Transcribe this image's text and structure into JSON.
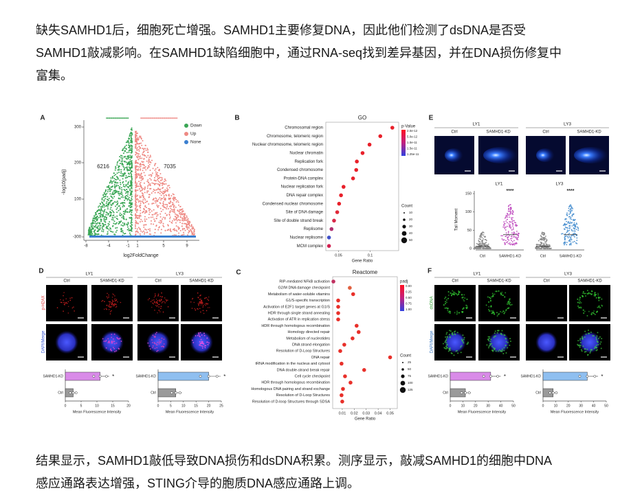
{
  "paragraphs": [
    [
      "缺失SAMHD1后，细胞死亡增强。SAMHD1主要修复DNA，因此他们检测了dsDNA是否受",
      "SAMHD1敲减影响。在SAMHD1缺陷细胞中，通过RNA-seq找到差异基因，并在DNA损伤修复中",
      "富集。"
    ],
    [
      "结果显示，SAMHD1敲低导致DNA损伤和dsDNA积累。测序显示，敲减SAMHD1的细胞中DNA",
      "感应通路表达增强，STING介导的胞质DNA感应通路上调。"
    ]
  ],
  "figure": {
    "A": {
      "label": "A",
      "legend": [
        {
          "name": "Down",
          "color": "#3aa655"
        },
        {
          "name": "Up",
          "color": "#ee8a84"
        },
        {
          "name": "None",
          "color": "#3b7fd0"
        }
      ],
      "down_count": 6216,
      "up_count": 7035,
      "ylabel": "-log10(padj)",
      "xlabel": "log2FoldChange",
      "yticks": [
        300,
        200,
        100,
        -300
      ],
      "xticks": [
        -8,
        -4,
        -1,
        1,
        5,
        9
      ]
    },
    "B": {
      "label": "B",
      "title": "GO",
      "xlabel": "Gene Ratio",
      "xlim": [
        0.03,
        0.145
      ],
      "xticks": [
        0.05,
        0.1
      ],
      "terms": [
        {
          "name": "Chromosomal region",
          "ratio": 0.135,
          "color": "#e8202a"
        },
        {
          "name": "Chromosome, telomeric region",
          "ratio": 0.116,
          "color": "#e8202a"
        },
        {
          "name": "Nuclear chromosome, telomeric region",
          "ratio": 0.099,
          "color": "#e8202a"
        },
        {
          "name": "Nuclear chromatin",
          "ratio": 0.088,
          "color": "#e8202a"
        },
        {
          "name": "Replication fork",
          "ratio": 0.079,
          "color": "#e8202a"
        },
        {
          "name": "Condensed chromosome",
          "ratio": 0.078,
          "color": "#e8202a"
        },
        {
          "name": "Protein-DNA complex",
          "ratio": 0.073,
          "color": "#e8202a"
        },
        {
          "name": "Nuclear replication fork",
          "ratio": 0.058,
          "color": "#e8202a"
        },
        {
          "name": "DNA repair complex",
          "ratio": 0.054,
          "color": "#e8202a"
        },
        {
          "name": "Condensed nuclear chromosome",
          "ratio": 0.051,
          "color": "#e8202a"
        },
        {
          "name": "Site of DNA damage",
          "ratio": 0.048,
          "color": "#e02838"
        },
        {
          "name": "Site of double strand break",
          "ratio": 0.043,
          "color": "#d82848"
        },
        {
          "name": "Replisome",
          "ratio": 0.039,
          "color": "#b03070"
        },
        {
          "name": "Nuclear replisome",
          "ratio": 0.035,
          "color": "#4050c8"
        },
        {
          "name": "MCM complex",
          "ratio": 0.035,
          "color": "#d02050"
        }
      ],
      "color_legend": {
        "title": "p-Value",
        "ticks": [
          "2.0e-12",
          "5.0e-12",
          "1.0e-11",
          "1.5e-11",
          "1.25e-11"
        ]
      },
      "size_legend": {
        "title": "Count",
        "ticks": [
          10,
          20,
          30,
          40,
          50
        ]
      }
    },
    "C": {
      "label": "C",
      "title": "Reactome",
      "xlabel": "Gene Ratio",
      "xlim": [
        0.002,
        0.056
      ],
      "xticks": [
        0.01,
        0.02,
        0.03,
        0.04,
        0.05
      ],
      "terms": [
        {
          "name": "RIP-mediated NFkB activation",
          "ratio": 0.0026,
          "color": "#c03060"
        },
        {
          "name": "G2/M DNA damage checkpoint",
          "ratio": 0.0163,
          "color": "#e06040"
        },
        {
          "name": "Metabolism of water-soluble vitamins",
          "ratio": 0.0191,
          "color": "#e8302a"
        },
        {
          "name": "G1/S-specific transcription",
          "ratio": 0.0066,
          "color": "#e8302a"
        },
        {
          "name": "Activation of E2F1 target genes at G1/S",
          "ratio": 0.0066,
          "color": "#e8302a"
        },
        {
          "name": "HDR through single strand annealing",
          "ratio": 0.0066,
          "color": "#e8302a"
        },
        {
          "name": "Activation of ATR in replication stress",
          "ratio": 0.0066,
          "color": "#e8302a"
        },
        {
          "name": "HDR through homologous recombination",
          "ratio": 0.022,
          "color": "#e8302a"
        },
        {
          "name": "Homology directed repair",
          "ratio": 0.0237,
          "color": "#e8302a"
        },
        {
          "name": "Metabolism of nucleotides",
          "ratio": 0.0186,
          "color": "#e8302a"
        },
        {
          "name": "DNA strand elongation",
          "ratio": 0.0117,
          "color": "#e8302a"
        },
        {
          "name": "Resolution of D-Loop Structures",
          "ratio": 0.0083,
          "color": "#e8302a"
        },
        {
          "name": "DNA repair",
          "ratio": 0.05,
          "color": "#e8302a"
        },
        {
          "name": "tRNA modification in the nucleus and cytosol",
          "ratio": 0.0094,
          "color": "#e8302a"
        },
        {
          "name": "DNA double-strand break repair",
          "ratio": 0.0283,
          "color": "#e8302a"
        },
        {
          "name": "Cell cycle checkpoint",
          "ratio": 0.0123,
          "color": "#e8302a"
        },
        {
          "name": "HDR through homologous recombination",
          "ratio": 0.0169,
          "color": "#e8302a"
        },
        {
          "name": "Homologous DNA pairing and strand exchange",
          "ratio": 0.0106,
          "color": "#e8302a"
        },
        {
          "name": "Resolution of D-Loop Structures",
          "ratio": 0.0094,
          "color": "#e8302a"
        },
        {
          "name": "Resolution of D-loop Structures through SDSA",
          "ratio": 0.01,
          "color": "#e8302a"
        }
      ],
      "color_legend": {
        "title": "padj",
        "ticks": [
          "0.00",
          "0.25",
          "0.50",
          "0.75",
          "1.00"
        ]
      },
      "size_legend": {
        "title": "Count",
        "ticks": [
          25,
          50,
          75,
          100,
          125
        ]
      }
    },
    "D": {
      "label": "D",
      "rows": [
        {
          "name": "p-H2AX",
          "color": "#e03030"
        },
        {
          "name": "DAPI/Merge",
          "color": "#3050d0"
        }
      ],
      "groups": [
        {
          "name": "LY1",
          "conditions": [
            "Ctrl",
            "SAMHD1-KD"
          ],
          "bars": {
            "categories": [
              "SAMHD1-KD",
              "Ctrl"
            ],
            "values": [
              11,
              2.5
            ],
            "colors": [
              "#d98be8",
              "#9a9a9a"
            ],
            "signif": "*",
            "xlim": [
              0,
              20
            ],
            "xticks": [
              0,
              5,
              10,
              15,
              20
            ],
            "xlabel": "Mean Fluorescence Intensity"
          }
        },
        {
          "name": "LY3",
          "conditions": [
            "Ctrl",
            "SAMHD1-KD"
          ],
          "bars": {
            "categories": [
              "SAMHD1-KD",
              "Ctrl"
            ],
            "values": [
              20,
              7
            ],
            "colors": [
              "#8fbff0",
              "#9a9a9a"
            ],
            "signif": "*",
            "xlim": [
              0,
              25
            ],
            "xticks": [
              0,
              5,
              10,
              15,
              20,
              25
            ],
            "xlabel": "Mean Fluorescence Intensity"
          }
        }
      ]
    },
    "E": {
      "label": "E",
      "groups": [
        {
          "name": "LY1",
          "conditions": [
            "Ctrl",
            "SAMHD1-KD"
          ]
        },
        {
          "name": "LY3",
          "conditions": [
            "Ctrl",
            "SAMHD1-KD"
          ]
        }
      ],
      "plot": {
        "ylabel": "Tail Moment",
        "ylim": [
          0,
          150
        ],
        "yticks": [
          0,
          50,
          100,
          150
        ],
        "groups": [
          {
            "name": "LY1",
            "signif": "****",
            "color": "#c050c0",
            "conditions": [
              "Ctrl",
              "SAMHD1-KD"
            ]
          },
          {
            "name": "LY3",
            "signif": "****",
            "color": "#4a90d0",
            "conditions": [
              "Ctrl",
              "SAMHD1-KD"
            ]
          }
        ]
      }
    },
    "F": {
      "label": "F",
      "rows": [
        {
          "name": "dsDNA",
          "color": "#30a030"
        },
        {
          "name": "DAPI/Merge",
          "color": "#3070c0"
        }
      ],
      "groups": [
        {
          "name": "LY1",
          "conditions": [
            "Ctrl",
            "SAMHD1-KD"
          ],
          "bars": {
            "categories": [
              "SAMHD1-KD",
              "Ctrl"
            ],
            "values": [
              32,
              12
            ],
            "colors": [
              "#d98be8",
              "#9a9a9a"
            ],
            "signif": "*",
            "xlim": [
              0,
              50
            ],
            "xticks": [
              0,
              10,
              20,
              30,
              40,
              50
            ],
            "xlabel": "Mean Fluorescence Intensity"
          }
        },
        {
          "name": "LY3",
          "conditions": [
            "Ctrl",
            "SAMHD1-KD"
          ],
          "bars": {
            "categories": [
              "SAMHD1-KD",
              "Ctrl"
            ],
            "values": [
              35,
              8
            ],
            "colors": [
              "#8fbff0",
              "#9a9a9a"
            ],
            "signif": "*",
            "xlim": [
              0,
              50
            ],
            "xticks": [
              0,
              10,
              20,
              30,
              40,
              50
            ],
            "xlabel": "Mean Fluorescence Intensity"
          }
        }
      ]
    }
  }
}
